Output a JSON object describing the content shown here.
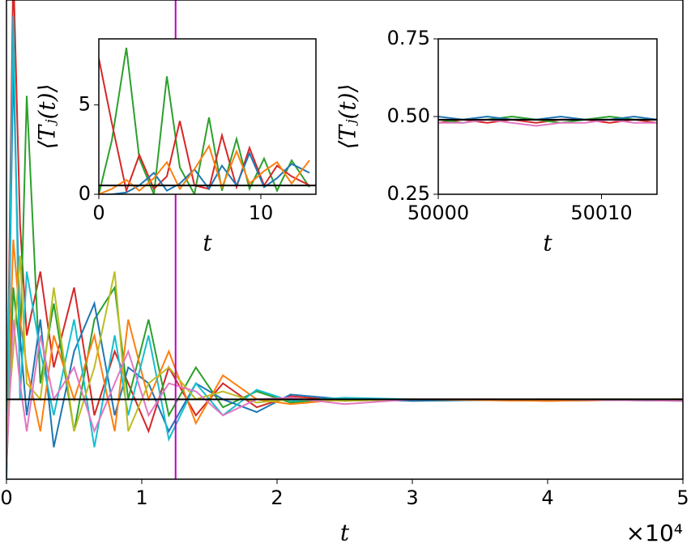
{
  "chart_data": [
    {
      "type": "line",
      "xlabel": "t",
      "x_offset": "×10⁴",
      "x": [
        0,
        0.05,
        0.1,
        0.15,
        0.25,
        0.35,
        0.5,
        0.65,
        0.8,
        0.9,
        1.05,
        1.2,
        1.4,
        1.6,
        1.85,
        2.1,
        2.5,
        3,
        4,
        5
      ],
      "xlim": [
        0,
        5
      ],
      "xticks": [
        0,
        1,
        2,
        3,
        4,
        5
      ],
      "ylim": [
        0,
        3
      ],
      "hline": 0.5,
      "vline": 1.25,
      "vline_color": "#c000c0",
      "series": [
        {
          "color": "#d62728",
          "values": [
            0.1,
            3.2,
            1.6,
            0.9,
            1.3,
            0.7,
            1.2,
            0.4,
            0.8,
            0.6,
            0.3,
            0.7,
            0.4,
            0.6,
            0.45,
            0.52,
            0.49,
            0.5,
            0.49,
            0.5
          ]
        },
        {
          "color": "#2ca02c",
          "values": [
            0.05,
            1.2,
            0.8,
            2.4,
            0.6,
            1.1,
            0.3,
            1.0,
            1.2,
            0.5,
            1.0,
            0.4,
            0.7,
            0.45,
            0.55,
            0.48,
            0.51,
            0.49,
            0.5,
            0.49
          ]
        },
        {
          "color": "#1f77b4",
          "values": [
            0.0,
            2.6,
            0.9,
            0.4,
            1.0,
            0.2,
            0.8,
            1.1,
            0.4,
            0.7,
            0.6,
            0.3,
            0.6,
            0.5,
            0.42,
            0.53,
            0.5,
            0.49,
            0.5,
            0.5
          ]
        },
        {
          "color": "#ff7f0e",
          "values": [
            0.2,
            1.5,
            1.0,
            0.7,
            0.3,
            0.9,
            0.5,
            0.9,
            0.3,
            1.0,
            0.5,
            0.8,
            0.35,
            0.65,
            0.5,
            0.47,
            0.5,
            0.5,
            0.49,
            0.5
          ]
        },
        {
          "color": "#17becf",
          "values": [
            0.0,
            2.9,
            0.5,
            1.3,
            0.8,
            0.4,
            1.0,
            0.2,
            0.9,
            0.4,
            0.9,
            0.25,
            0.6,
            0.4,
            0.56,
            0.49,
            0.51,
            0.5,
            0.5,
            0.49
          ]
        },
        {
          "color": "#bcbd22",
          "values": [
            0.3,
            0.8,
            1.4,
            0.6,
            0.5,
            1.2,
            0.3,
            0.7,
            1.3,
            0.3,
            0.6,
            0.7,
            0.5,
            0.55,
            0.48,
            0.5,
            0.49,
            0.5,
            0.5,
            0.5
          ]
        },
        {
          "color": "#e377c2",
          "values": [
            0.1,
            1.0,
            0.6,
            0.3,
            0.9,
            0.5,
            0.7,
            0.3,
            0.6,
            0.8,
            0.4,
            0.6,
            0.55,
            0.4,
            0.5,
            0.51,
            0.47,
            0.5,
            0.5,
            0.49
          ]
        }
      ]
    },
    {
      "type": "line",
      "xlabel": "t",
      "ylabel": "⟨Tⱼ(t)⟩",
      "x": [
        0,
        0.8,
        1.7,
        2.5,
        3.4,
        4.2,
        5,
        5.9,
        6.8,
        7.6,
        8.5,
        9.3,
        10.2,
        11,
        11.9,
        13
      ],
      "xlim": [
        0,
        13.4
      ],
      "xticks": [
        0,
        10
      ],
      "ylim": [
        0,
        8.7
      ],
      "yticks": [
        0,
        5
      ],
      "hline": 0.49,
      "series": [
        {
          "color": "#2ca02c",
          "values": [
            0,
            3,
            8.2,
            2,
            0,
            6.6,
            1.5,
            0,
            4.3,
            0.2,
            3.1,
            0.3,
            2.0,
            0.2,
            1.9,
            0.4
          ]
        },
        {
          "color": "#d62728",
          "values": [
            7.6,
            4,
            0.2,
            2.2,
            0.3,
            1,
            4.1,
            0.5,
            0.3,
            3.3,
            0.4,
            2.6,
            0.5,
            1.6,
            1.0,
            0.5
          ]
        },
        {
          "color": "#1f77b4",
          "values": [
            0,
            0,
            0.1,
            0.5,
            1.2,
            0.2,
            0.6,
            1.4,
            0.3,
            1.6,
            0.5,
            2.3,
            0.4,
            0.9,
            1.7,
            1.2
          ]
        },
        {
          "color": "#ff7f0e",
          "values": [
            0,
            0.3,
            0.8,
            0.2,
            0.9,
            1.8,
            0.3,
            1.4,
            2.7,
            0.4,
            2.4,
            0.6,
            1.3,
            1.8,
            0.6,
            1.9
          ]
        }
      ]
    },
    {
      "type": "line",
      "xlabel": "t",
      "ylabel": "⟨Tⱼ(t)⟩",
      "x": [
        50000,
        50001.5,
        50003,
        50004.5,
        50006,
        50007.5,
        50009,
        50010.5,
        50012,
        50013.4
      ],
      "xlim": [
        50000,
        50013.4
      ],
      "xticks": [
        50000,
        50010
      ],
      "ylim": [
        0.25,
        0.75
      ],
      "yticks": [
        0.25,
        {
          "value": 0.5,
          "label": "0.50"
        },
        0.75
      ],
      "hline": 0.49,
      "series": [
        {
          "color": "#d62728",
          "values": [
            0.48,
            0.49,
            0.48,
            0.49,
            0.48,
            0.49,
            0.49,
            0.48,
            0.49,
            0.48
          ]
        },
        {
          "color": "#2ca02c",
          "values": [
            0.49,
            0.48,
            0.49,
            0.5,
            0.49,
            0.48,
            0.49,
            0.5,
            0.49,
            0.49
          ]
        },
        {
          "color": "#1f77b4",
          "values": [
            0.5,
            0.49,
            0.5,
            0.49,
            0.49,
            0.5,
            0.49,
            0.49,
            0.5,
            0.49
          ]
        },
        {
          "color": "#e377c2",
          "values": [
            0.48,
            0.48,
            0.49,
            0.48,
            0.47,
            0.48,
            0.48,
            0.49,
            0.48,
            0.48
          ]
        }
      ]
    }
  ]
}
